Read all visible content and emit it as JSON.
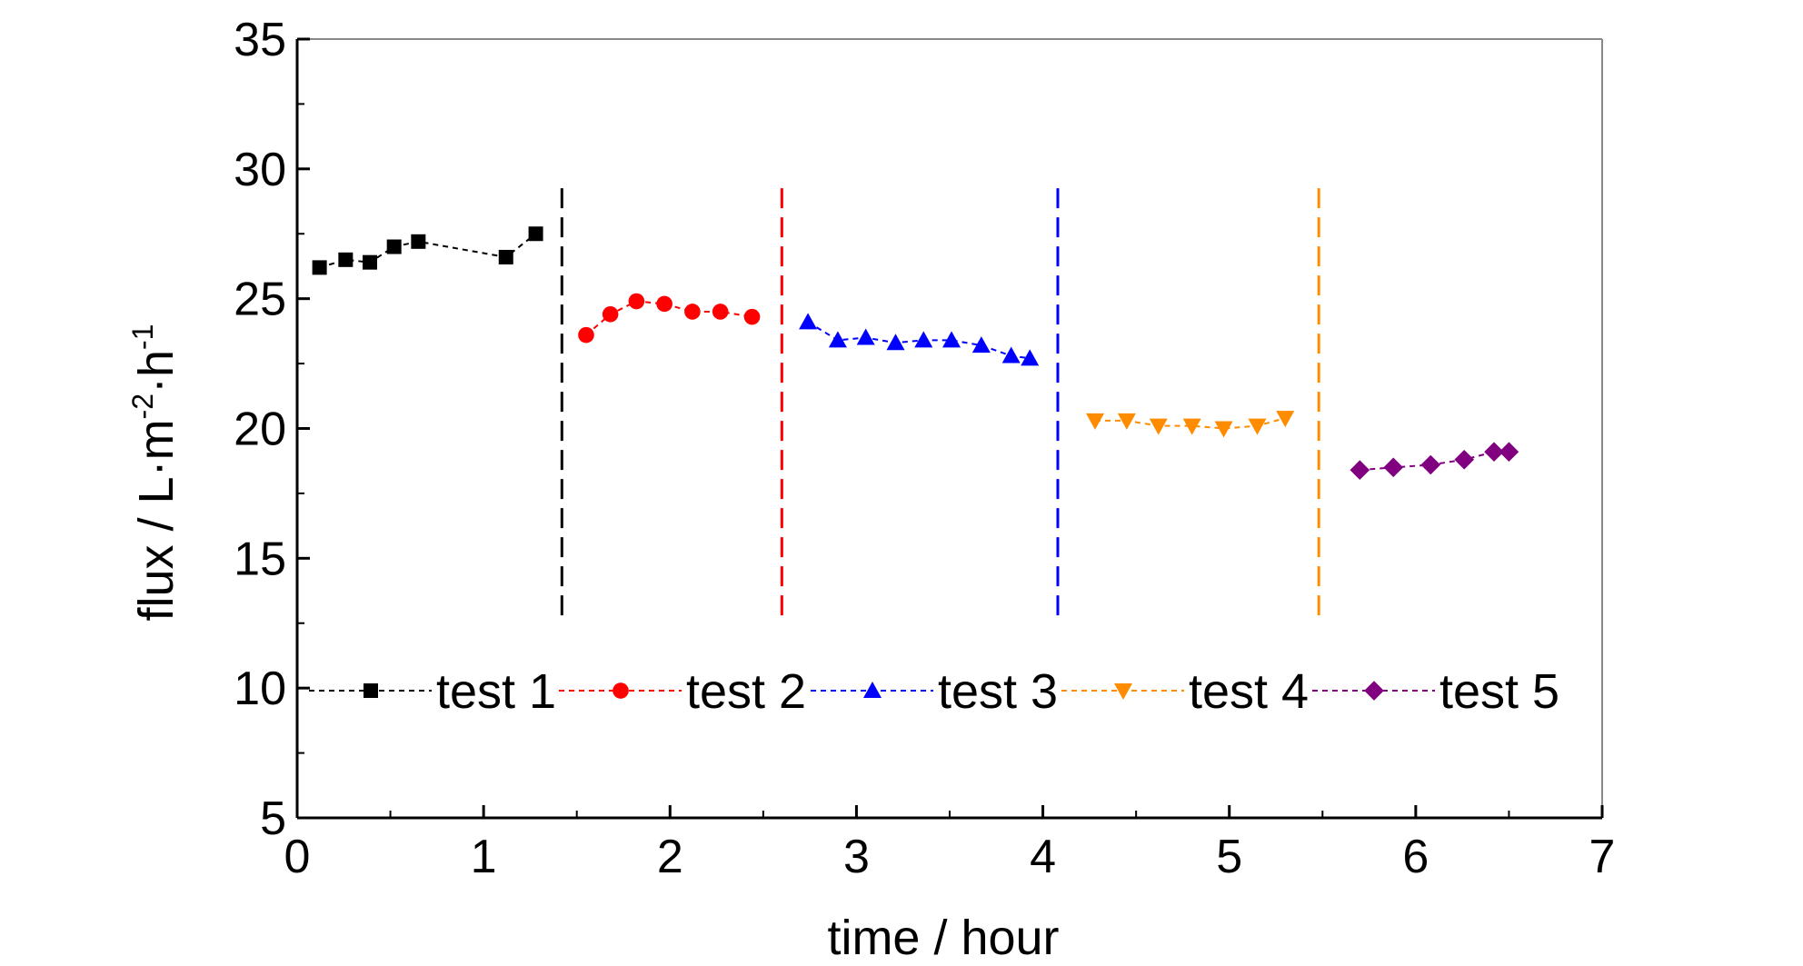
{
  "chart_data": {
    "type": "scatter",
    "title": "",
    "xlabel": "time / hour",
    "ylabel": {
      "prefix": "flux / L·m",
      "sup1": "-2",
      "mid": "·h",
      "sup2": "-1"
    },
    "xlim": [
      0,
      7
    ],
    "ylim": [
      5,
      35
    ],
    "xticks": [
      "0",
      "1",
      "2",
      "3",
      "4",
      "5",
      "6",
      "7"
    ],
    "yticks": [
      "5",
      "10",
      "15",
      "20",
      "25",
      "30",
      "35"
    ],
    "grid": false,
    "legend_position": "inside-bottom",
    "series": [
      {
        "name": "test 1",
        "color": "#000000",
        "marker": "square",
        "x": [
          0.12,
          0.26,
          0.39,
          0.52,
          0.65,
          1.12,
          1.28
        ],
        "y": [
          26.2,
          26.5,
          26.4,
          27.0,
          27.2,
          26.6,
          27.5
        ]
      },
      {
        "name": "test 2",
        "color": "#ff0000",
        "marker": "circle",
        "x": [
          1.55,
          1.68,
          1.82,
          1.97,
          2.12,
          2.27,
          2.44
        ],
        "y": [
          23.6,
          24.4,
          24.9,
          24.8,
          24.5,
          24.5,
          24.3
        ]
      },
      {
        "name": "test 3",
        "color": "#0000ff",
        "marker": "triangle-up",
        "x": [
          2.74,
          2.9,
          3.05,
          3.21,
          3.36,
          3.51,
          3.67,
          3.83,
          3.93
        ],
        "y": [
          24.1,
          23.4,
          23.5,
          23.3,
          23.4,
          23.4,
          23.2,
          22.8,
          22.7
        ]
      },
      {
        "name": "test 4",
        "color": "#ff8c00",
        "marker": "triangle-down",
        "x": [
          4.28,
          4.45,
          4.62,
          4.8,
          4.97,
          5.15,
          5.3
        ],
        "y": [
          20.3,
          20.3,
          20.1,
          20.1,
          20.0,
          20.1,
          20.4
        ]
      },
      {
        "name": "test 5",
        "color": "#800080",
        "marker": "diamond",
        "x": [
          5.7,
          5.88,
          6.08,
          6.26,
          6.42,
          6.5
        ],
        "y": [
          18.4,
          18.5,
          18.6,
          18.8,
          19.1,
          19.1
        ]
      }
    ],
    "dividers": [
      {
        "x": 1.42,
        "color": "#000000"
      },
      {
        "x": 2.6,
        "color": "#ff0000"
      },
      {
        "x": 4.08,
        "color": "#0000ff"
      },
      {
        "x": 5.48,
        "color": "#ff8c00"
      }
    ],
    "divider_range": [
      12.8,
      29.6
    ],
    "legend_y": 9.9
  }
}
